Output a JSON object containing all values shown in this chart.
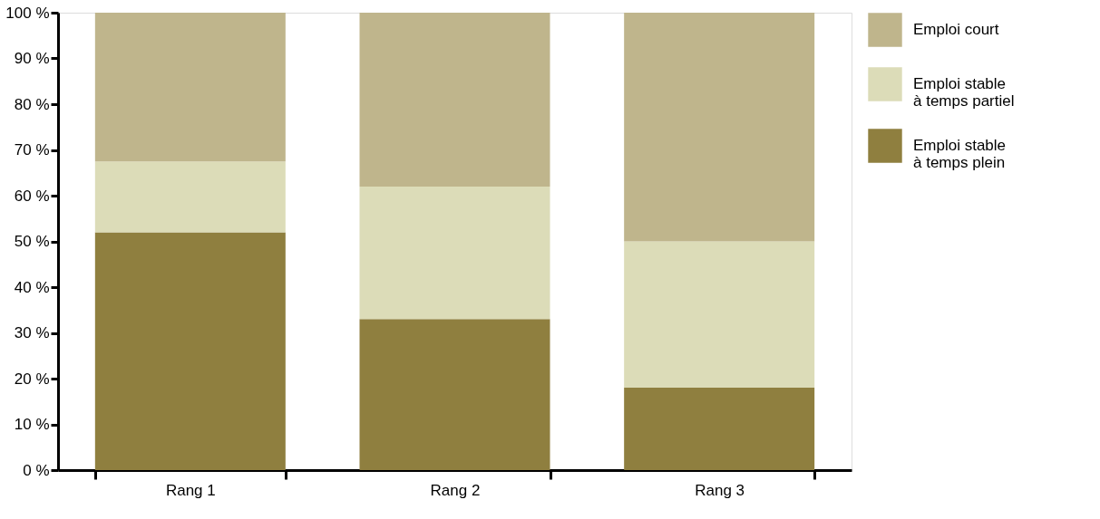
{
  "chart_data": {
    "type": "bar",
    "stacked": true,
    "categories": [
      "Rang 1",
      "Rang 2",
      "Rang 3"
    ],
    "series": [
      {
        "name": "Emploi stable\nà temps plein",
        "color": "#8f7f3f",
        "values": [
          52,
          33,
          18
        ]
      },
      {
        "name": "Emploi stable\nà temps partiel",
        "color": "#dcdcb8",
        "values": [
          15.5,
          29,
          32
        ]
      },
      {
        "name": "Emploi court",
        "color": "#bfb58c",
        "values": [
          32.5,
          38,
          50
        ]
      }
    ],
    "ylim": [
      0,
      100
    ],
    "yticks": [
      {
        "value": 0,
        "label": "0 %"
      },
      {
        "value": 10,
        "label": "10 %"
      },
      {
        "value": 20,
        "label": "20 %"
      },
      {
        "value": 30,
        "label": "30 %"
      },
      {
        "value": 40,
        "label": "40 %"
      },
      {
        "value": 50,
        "label": "50 %"
      },
      {
        "value": 60,
        "label": "60 %"
      },
      {
        "value": 70,
        "label": "70 %"
      },
      {
        "value": 80,
        "label": "80 %"
      },
      {
        "value": 90,
        "label": "90 %"
      },
      {
        "value": 100,
        "label": "100 %"
      }
    ],
    "grid": false,
    "legend": "right"
  }
}
